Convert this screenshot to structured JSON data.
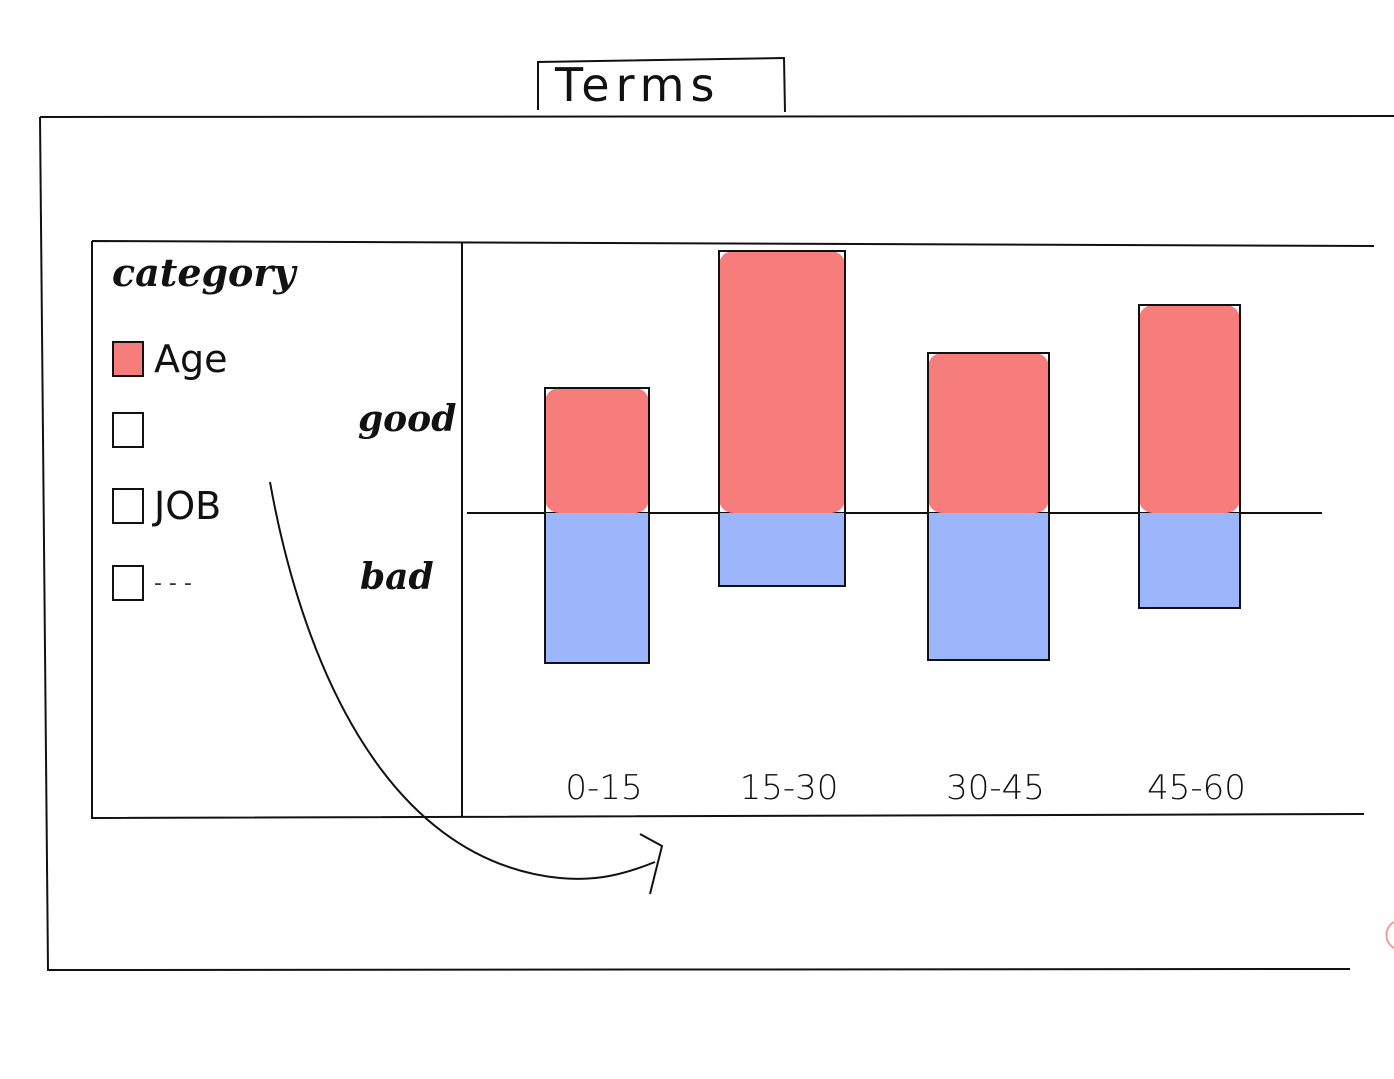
{
  "tab": {
    "label": "Terms"
  },
  "legend": {
    "title": "category",
    "items": [
      {
        "label": "Age",
        "checked": true
      },
      {
        "label": "",
        "checked": false
      },
      {
        "label": "JOB",
        "checked": false
      },
      {
        "label": "- - -",
        "checked": false
      }
    ]
  },
  "axis": {
    "top_label": "good",
    "bottom_label": "bad"
  },
  "colors": {
    "good": "#f77d7d",
    "bad": "#9db5fa",
    "stroke": "#111111"
  },
  "chart_data": {
    "type": "bar",
    "categories": [
      "0-15",
      "15-30",
      "30-45",
      "45-60"
    ],
    "series": [
      {
        "name": "good",
        "values": [
          125,
          262,
          160,
          208
        ]
      },
      {
        "name": "bad",
        "values": [
          150,
          73,
          147,
          95
        ]
      }
    ]
  }
}
